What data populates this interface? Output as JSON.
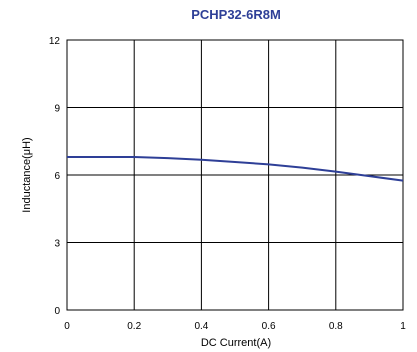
{
  "chart_data": {
    "type": "line",
    "title": "PCHP32-6R8M",
    "xlabel": "DC Current(A)",
    "ylabel": "Inductance(μH)",
    "xlim": [
      0,
      1
    ],
    "ylim": [
      0,
      12
    ],
    "xticks": [
      0,
      0.2,
      0.4,
      0.6,
      0.8,
      1
    ],
    "yticks": [
      0,
      3,
      6,
      9,
      12
    ],
    "x_tick_labels": [
      "0",
      "0.2",
      "0.4",
      "0.6",
      "0.8",
      "1"
    ],
    "y_tick_labels": [
      "0",
      "3",
      "6",
      "9",
      "12"
    ],
    "grid": true,
    "legend": "none",
    "series": [
      {
        "x": [
          0,
          0.1,
          0.2,
          0.3,
          0.4,
          0.5,
          0.6,
          0.7,
          0.8,
          0.9,
          1.0
        ],
        "y": [
          6.8,
          6.8,
          6.8,
          6.75,
          6.68,
          6.58,
          6.47,
          6.33,
          6.15,
          5.95,
          5.75
        ]
      }
    ],
    "colors": {
      "line": "#2e3f97",
      "title": "#2e3f97",
      "grid": "#000000"
    }
  }
}
